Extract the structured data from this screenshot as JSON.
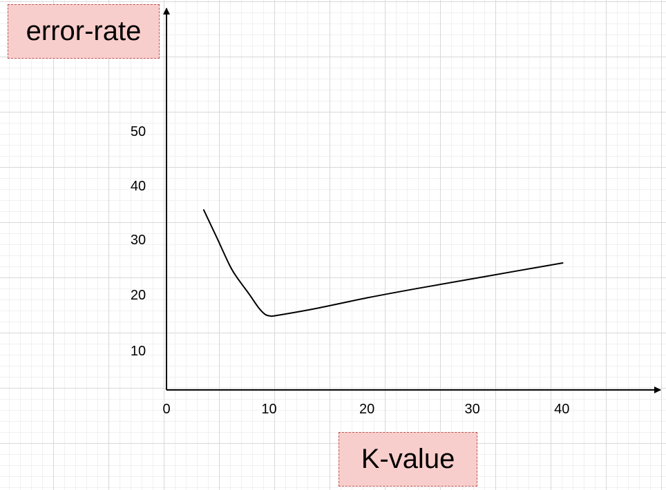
{
  "colors": {
    "label_fill": "#f8cecc",
    "label_border": "#b85450",
    "line": "#000000",
    "axis": "#000000"
  },
  "chart_data": {
    "type": "line",
    "title": "",
    "xlabel": "K-value",
    "ylabel": "error-rate",
    "x_ticks": [
      "0",
      "10",
      "20",
      "30",
      "40"
    ],
    "y_ticks": [
      "10",
      "20",
      "30",
      "40",
      "50"
    ],
    "xlim": [
      0,
      45
    ],
    "ylim": [
      3,
      73
    ],
    "grid": true,
    "legend": "none",
    "series": [
      {
        "points": [
          [
            3.7,
            35.6
          ],
          [
            5.0,
            30.6
          ],
          [
            6.3,
            25.5
          ],
          [
            7.0,
            23.4
          ],
          [
            8.2,
            20.4
          ],
          [
            9.2,
            17.8
          ],
          [
            9.8,
            16.7
          ],
          [
            10.3,
            16.4
          ],
          [
            11.0,
            16.5
          ],
          [
            15.0,
            17.8
          ],
          [
            20.0,
            19.7
          ],
          [
            25.0,
            21.4
          ],
          [
            30.0,
            23.0
          ],
          [
            35.0,
            24.6
          ],
          [
            39.4,
            26.0
          ]
        ]
      }
    ]
  }
}
